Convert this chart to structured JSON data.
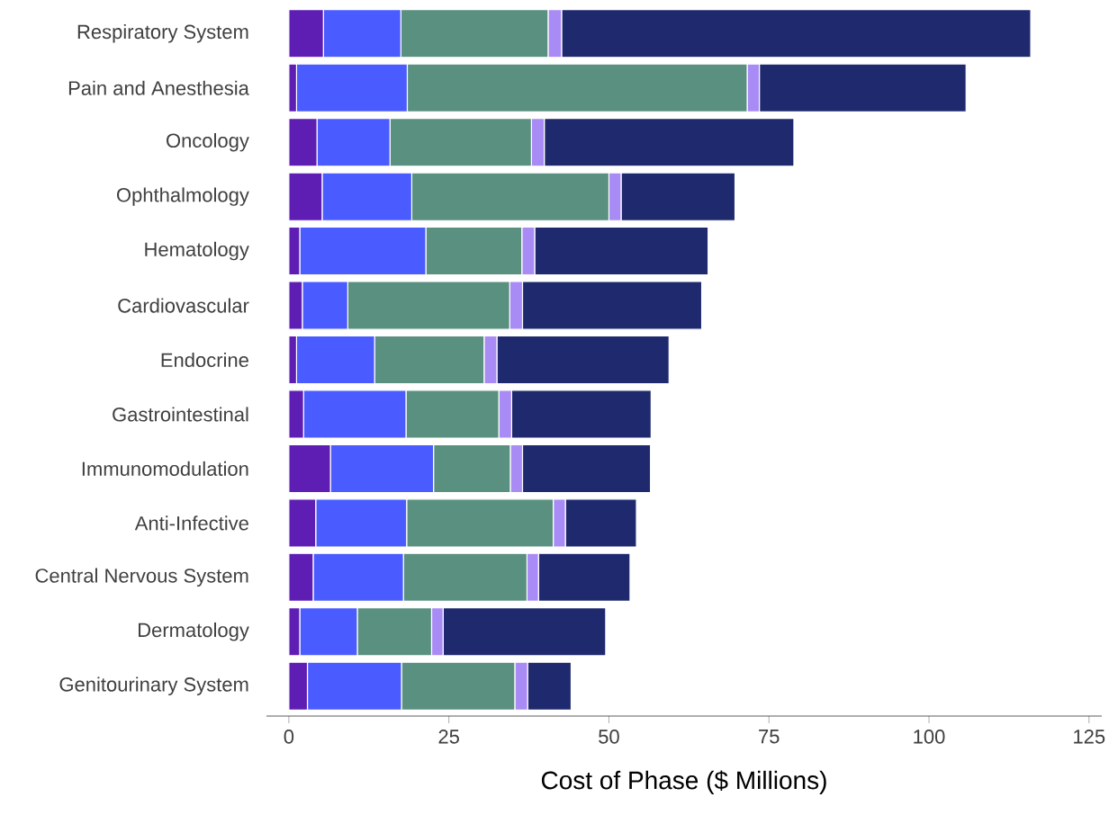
{
  "chart_data": {
    "type": "bar",
    "orientation": "horizontal",
    "stacked": true,
    "xlabel": "Cost of Phase ($ Millions)",
    "categories": [
      "Respiratory System",
      "Pain and Anesthesia",
      "Oncology",
      "Ophthalmology",
      "Hematology",
      "Cardiovascular",
      "Endocrine",
      "Gastrointestinal",
      "Immunomodulation",
      "Anti-Infective",
      "Central Nervous System",
      "Dermatology",
      "Genitourinary System"
    ],
    "series": [
      {
        "color": "#5e1eb4",
        "values": [
          5.4,
          1.2,
          4.4,
          5.2,
          1.7,
          2.1,
          1.2,
          2.3,
          6.5,
          4.2,
          3.8,
          1.7,
          2.9
        ]
      },
      {
        "color": "#4a5cff",
        "values": [
          12.1,
          17.3,
          11.4,
          14.0,
          19.7,
          7.1,
          12.2,
          16.0,
          16.1,
          14.2,
          14.1,
          9.0,
          14.7
        ]
      },
      {
        "color": "#5a9080",
        "values": [
          23.0,
          53.1,
          22.1,
          30.8,
          15.0,
          25.3,
          17.1,
          14.5,
          12.0,
          22.9,
          19.3,
          11.6,
          17.7
        ]
      },
      {
        "color": "#a98bf5",
        "values": [
          2.1,
          1.9,
          2.0,
          1.9,
          2.0,
          2.0,
          2.0,
          2.0,
          1.9,
          1.9,
          1.8,
          1.8,
          2.0
        ]
      },
      {
        "color": "#1f2a6e",
        "values": [
          73.3,
          32.3,
          39.0,
          17.8,
          27.1,
          28.0,
          26.9,
          21.8,
          20.0,
          11.1,
          14.3,
          25.4,
          6.8
        ]
      }
    ],
    "xlim": [
      -3.5,
      127
    ],
    "xticks": [
      0,
      25,
      50,
      75,
      100,
      125
    ]
  }
}
